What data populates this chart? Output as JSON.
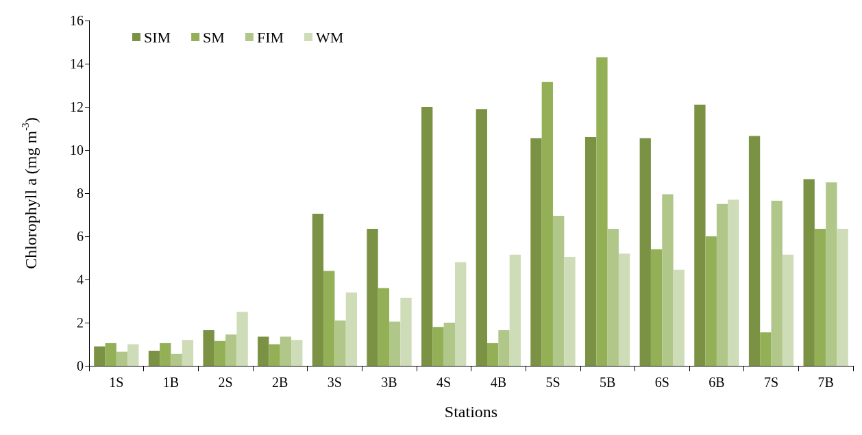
{
  "chart_data": {
    "type": "bar",
    "xlabel": "Stations",
    "ylabel": "Chlorophyll a (mg m$^{-3}$)",
    "categories": [
      "1S",
      "1B",
      "2S",
      "2B",
      "3S",
      "3B",
      "4S",
      "4B",
      "5S",
      "5B",
      "6S",
      "6B",
      "7S",
      "7B"
    ],
    "series": [
      {
        "name": "SIM",
        "color": "#7b9245",
        "values": [
          0.9,
          0.7,
          1.65,
          1.35,
          7.05,
          6.35,
          12.0,
          11.9,
          10.55,
          10.6,
          10.55,
          12.1,
          10.65,
          8.65
        ]
      },
      {
        "name": "SM",
        "color": "#93b056",
        "values": [
          1.05,
          1.05,
          1.15,
          1.0,
          4.4,
          3.6,
          1.8,
          1.05,
          13.15,
          14.3,
          5.4,
          6.0,
          1.55,
          6.35
        ]
      },
      {
        "name": "FIM",
        "color": "#b0c789",
        "values": [
          0.65,
          0.55,
          1.45,
          1.35,
          2.1,
          2.05,
          2.0,
          1.65,
          6.95,
          6.35,
          7.95,
          7.5,
          7.65,
          8.5
        ]
      },
      {
        "name": "WM",
        "color": "#cfdcb8",
        "values": [
          1.0,
          1.2,
          2.5,
          1.2,
          3.4,
          3.15,
          4.8,
          5.15,
          5.05,
          5.2,
          4.45,
          7.7,
          5.15,
          6.35
        ]
      }
    ],
    "ylim": [
      0,
      16
    ],
    "yticks": [
      0,
      2,
      4,
      6,
      8,
      10,
      12,
      14,
      16
    ],
    "grid": false,
    "legend": "top left"
  }
}
